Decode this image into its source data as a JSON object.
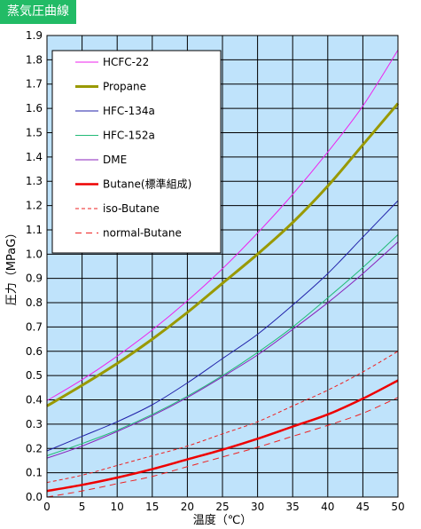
{
  "page_title": "蒸気圧曲線",
  "colors": {
    "title_bg": "#22bb66",
    "plot_bg": "#bfe3fb",
    "grid": "#000000"
  },
  "chart_data": {
    "type": "line",
    "title": "",
    "xlabel": "温度（℃）",
    "ylabel": "圧力（MPaG）",
    "xlim": [
      0,
      50
    ],
    "ylim": [
      0.0,
      1.9
    ],
    "grid": true,
    "legend_position": "top-left",
    "x_ticks": [
      "0",
      "5",
      "10",
      "15",
      "20",
      "25",
      "30",
      "35",
      "40",
      "45",
      "50"
    ],
    "y_ticks": [
      "0.0",
      "0.1",
      "0.2",
      "0.3",
      "0.4",
      "0.5",
      "0.6",
      "0.7",
      "0.8",
      "0.9",
      "1.0",
      "1.1",
      "1.2",
      "1.3",
      "1.4",
      "1.5",
      "1.6",
      "1.7",
      "1.8",
      "1.9"
    ],
    "x": [
      0,
      5,
      10,
      15,
      20,
      25,
      30,
      35,
      40,
      45,
      50
    ],
    "series": [
      {
        "name": "HCFC-22",
        "color": "#ee22ee",
        "width": 1,
        "dash": "",
        "values": [
          0.397,
          0.483,
          0.58,
          0.688,
          0.808,
          0.94,
          1.087,
          1.246,
          1.42,
          1.61,
          1.84
        ]
      },
      {
        "name": "Propane",
        "color": "#999900",
        "width": 3,
        "dash": "",
        "values": [
          0.375,
          0.46,
          0.55,
          0.65,
          0.76,
          0.88,
          1.0,
          1.13,
          1.28,
          1.45,
          1.62
        ]
      },
      {
        "name": "HFC-134a",
        "color": "#2222aa",
        "width": 1,
        "dash": "",
        "values": [
          0.19,
          0.25,
          0.31,
          0.38,
          0.47,
          0.57,
          0.67,
          0.79,
          0.92,
          1.07,
          1.22
        ]
      },
      {
        "name": "HFC-152a",
        "color": "#22bb77",
        "width": 1,
        "dash": "",
        "values": [
          0.17,
          0.22,
          0.275,
          0.34,
          0.415,
          0.5,
          0.595,
          0.7,
          0.82,
          0.945,
          1.08
        ]
      },
      {
        "name": "DME",
        "color": "#8822bb",
        "width": 1,
        "dash": "",
        "values": [
          0.16,
          0.21,
          0.27,
          0.335,
          0.41,
          0.495,
          0.585,
          0.69,
          0.8,
          0.92,
          1.05
        ]
      },
      {
        "name": "Butane(標準組成)",
        "color": "#ee0000",
        "width": 2.5,
        "dash": "",
        "values": [
          0.025,
          0.05,
          0.08,
          0.115,
          0.155,
          0.195,
          0.24,
          0.29,
          0.34,
          0.405,
          0.48
        ]
      },
      {
        "name": "iso-Butane",
        "color": "#ee2222",
        "width": 1,
        "dash": "4,3",
        "values": [
          0.06,
          0.09,
          0.13,
          0.17,
          0.21,
          0.26,
          0.31,
          0.375,
          0.44,
          0.515,
          0.6
        ]
      },
      {
        "name": "normal-Butane",
        "color": "#ee2222",
        "width": 1,
        "dash": "7,5",
        "values": [
          0.0,
          0.025,
          0.055,
          0.085,
          0.125,
          0.165,
          0.205,
          0.25,
          0.295,
          0.345,
          0.41
        ]
      }
    ]
  }
}
